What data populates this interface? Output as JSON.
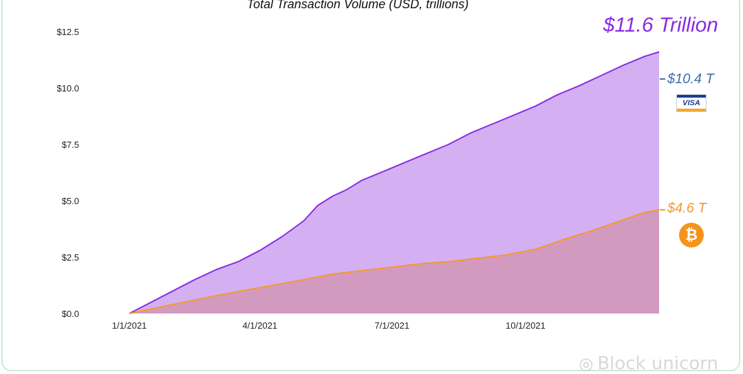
{
  "chart_data": {
    "type": "area",
    "title": "Total Transaction Volume (USD, trillions)",
    "xlabel": "",
    "ylabel": "",
    "x_tick_labels": [
      "1/1/2021",
      "4/1/2021",
      "7/1/2021",
      "10/1/2021"
    ],
    "y_tick_labels": [
      "$0.0",
      "$2.5",
      "$5.0",
      "$7.5",
      "$10.0",
      "$12.5"
    ],
    "y_ticks": [
      0,
      2.5,
      5,
      7.5,
      10,
      12.5
    ],
    "ylim": [
      0,
      12.5
    ],
    "x_domain_days": [
      0,
      365
    ],
    "x_ticks_days": [
      0,
      90,
      181,
      273
    ],
    "grid": false,
    "series": [
      {
        "color": "#8a2be2",
        "fill": "#d4b0f2",
        "x_days": [
          0,
          15,
          30,
          45,
          60,
          75,
          90,
          105,
          120,
          130,
          135,
          140,
          145,
          150,
          160,
          175,
          190,
          205,
          220,
          235,
          250,
          265,
          280,
          295,
          310,
          325,
          340,
          355,
          365
        ],
        "values": [
          0,
          0.5,
          1.0,
          1.5,
          1.95,
          2.3,
          2.8,
          3.4,
          4.1,
          4.8,
          5.0,
          5.2,
          5.35,
          5.5,
          5.9,
          6.3,
          6.7,
          7.1,
          7.5,
          8.0,
          8.4,
          8.8,
          9.2,
          9.7,
          10.1,
          10.55,
          11.0,
          11.4,
          11.6
        ]
      },
      {
        "color": "#f39a2b",
        "fill": "#d39ac0",
        "x_days": [
          0,
          30,
          60,
          90,
          120,
          140,
          160,
          180,
          200,
          220,
          240,
          260,
          280,
          300,
          320,
          340,
          355,
          365
        ],
        "values": [
          0,
          0.4,
          0.8,
          1.15,
          1.5,
          1.75,
          1.9,
          2.05,
          2.2,
          2.3,
          2.45,
          2.6,
          2.85,
          3.3,
          3.7,
          4.15,
          4.48,
          4.6
        ]
      }
    ],
    "annotations": {
      "total": "$11.6 Trillion",
      "visa_value": "$10.4 T",
      "btc_value": "$4.6 T",
      "visa_marker_value": 10.4,
      "btc_marker_value": 4.6
    },
    "colors": {
      "total": "#8a2be2",
      "visa": "#3b6fa8",
      "btc": "#f39a2b"
    }
  },
  "logos": {
    "visa_text": "VISA",
    "btc_symbol": "₿"
  },
  "watermark": {
    "text": "Block unicorn",
    "icon": "wechat-icon"
  }
}
